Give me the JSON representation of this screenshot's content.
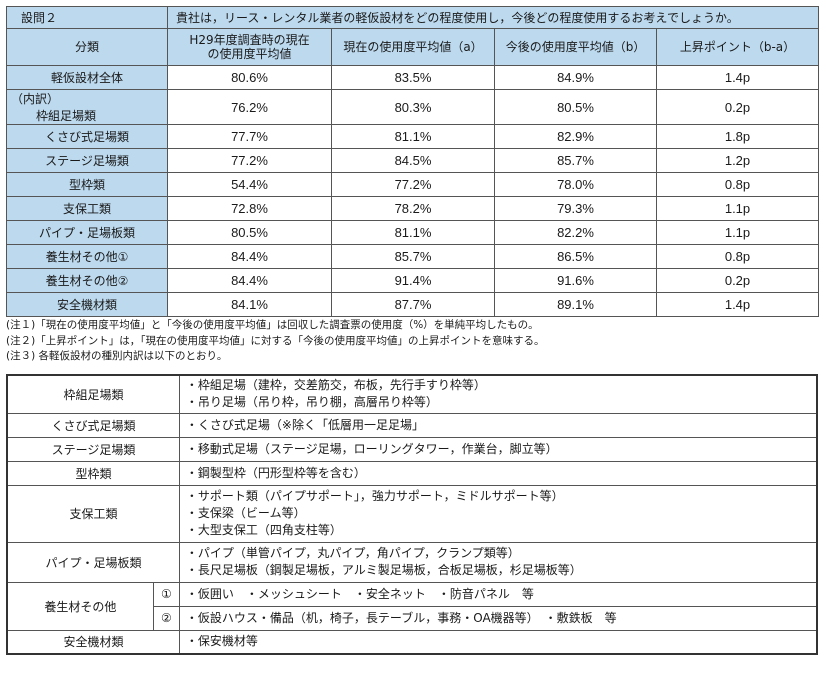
{
  "question": {
    "label": "設問２",
    "text": "貴社は，リース・レンタル業者の軽仮設材をどの程度使用し，今後どの程度使用するお考えでしょうか。"
  },
  "headers": {
    "category": "分類",
    "h29_line1": "H29年度調査時の現在",
    "h29_line2": "の使用度平均値",
    "current": "現在の使用度平均値（a）",
    "future": "今後の使用度平均値（b）",
    "rise": "上昇ポイント（b-a）"
  },
  "rows": [
    {
      "prefix": "",
      "name": "軽仮設材全体",
      "h29": "80.6%",
      "current": "83.5%",
      "future": "84.9%",
      "rise": "1.4p"
    },
    {
      "prefix": "（内訳）",
      "name": "枠組足場類",
      "h29": "76.2%",
      "current": "80.3%",
      "future": "80.5%",
      "rise": "0.2p"
    },
    {
      "prefix": "",
      "name": "くさび式足場類",
      "h29": "77.7%",
      "current": "81.1%",
      "future": "82.9%",
      "rise": "1.8p"
    },
    {
      "prefix": "",
      "name": "ステージ足場類",
      "h29": "77.2%",
      "current": "84.5%",
      "future": "85.7%",
      "rise": "1.2p"
    },
    {
      "prefix": "",
      "name": "型枠類",
      "h29": "54.4%",
      "current": "77.2%",
      "future": "78.0%",
      "rise": "0.8p"
    },
    {
      "prefix": "",
      "name": "支保工類",
      "h29": "72.8%",
      "current": "78.2%",
      "future": "79.3%",
      "rise": "1.1p"
    },
    {
      "prefix": "",
      "name": "パイプ・足場板類",
      "h29": "80.5%",
      "current": "81.1%",
      "future": "82.2%",
      "rise": "1.1p"
    },
    {
      "prefix": "",
      "name": "養生材その他①",
      "h29": "84.4%",
      "current": "85.7%",
      "future": "86.5%",
      "rise": "0.8p"
    },
    {
      "prefix": "",
      "name": "養生材その他②",
      "h29": "84.4%",
      "current": "91.4%",
      "future": "91.6%",
      "rise": "0.2p"
    },
    {
      "prefix": "",
      "name": "安全機材類",
      "h29": "84.1%",
      "current": "87.7%",
      "future": "89.1%",
      "rise": "1.4p"
    }
  ],
  "notes": [
    "(注１)「現在の使用度平均値」と「今後の使用度平均値」は回収した調査票の使用度（%）を単純平均したもの。",
    "(注２)「上昇ポイント」は，「現在の使用度平均値」に対する「今後の使用度平均値」の上昇ポイントを意味する。",
    "(注３) 各軽仮設材の種別内訳は以下のとおり。"
  ],
  "breakdown": {
    "wakugumi": {
      "name": "枠組足場類",
      "items": [
        "・枠組足場（建枠，交差筋交，布板，先行手すり枠等）",
        "・吊り足場（吊り枠，吊り棚，高層吊り枠等）"
      ]
    },
    "kusabi": {
      "name": "くさび式足場類",
      "items": [
        "・くさび式足場（※除く「低層用一足足場」"
      ]
    },
    "stage": {
      "name": "ステージ足場類",
      "items": [
        "・移動式足場（ステージ足場，ローリングタワー，作業台，脚立等）"
      ]
    },
    "katawaku": {
      "name": "型枠類",
      "items": [
        "・鋼製型枠（円形型枠等を含む）"
      ]
    },
    "shiho": {
      "name": "支保工類",
      "items": [
        "・サポート類（パイプサポート」，強力サポート，ミドルサポート等）",
        "・支保梁（ビーム等）",
        "・大型支保工（四角支柱等）"
      ]
    },
    "pipe": {
      "name": "パイプ・足場板類",
      "items": [
        "・パイプ（単管パイプ，丸パイプ，角パイプ，クランプ類等）",
        "・長尺足場板（鋼製足場板，アルミ製足場板，合板足場板，杉足場板等）"
      ]
    },
    "yojo": {
      "name": "養生材その他",
      "sub1": {
        "mark": "①",
        "text": "・仮囲い　・メッシュシート　・安全ネット　・防音パネル　等"
      },
      "sub2": {
        "mark": "②",
        "text": "・仮設ハウス・備品（机，椅子，長テーブル，事務・OA機器等）　・敷鉄板　等"
      }
    },
    "anzen": {
      "name": "安全機材類",
      "items": [
        "・保安機材等"
      ]
    }
  }
}
